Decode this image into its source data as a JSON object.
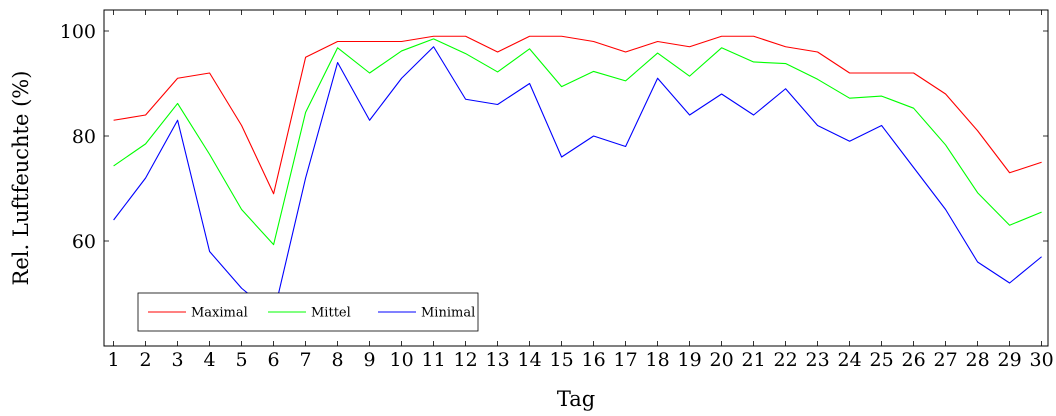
{
  "chart_data": {
    "type": "line",
    "title": "",
    "xlabel": "Tag",
    "ylabel": "Rel. Luftfeuchte (%)",
    "x": [
      1,
      2,
      3,
      4,
      5,
      6,
      7,
      8,
      9,
      10,
      11,
      12,
      13,
      14,
      15,
      16,
      17,
      18,
      19,
      20,
      21,
      22,
      23,
      24,
      25,
      26,
      27,
      28,
      29,
      30
    ],
    "xlim": [
      0.7,
      30.2
    ],
    "ylim": [
      40,
      104
    ],
    "yticks": [
      60,
      80,
      100
    ],
    "grid": false,
    "legend_position": "bottom-left",
    "series": [
      {
        "name": "Maximal",
        "color": "#ff0000",
        "values": [
          83,
          84,
          91,
          92,
          82,
          69,
          95,
          98,
          98,
          98,
          99,
          99,
          96,
          99,
          99,
          98,
          96,
          98,
          97,
          99,
          99,
          97,
          96,
          92,
          92,
          92,
          88,
          81,
          73,
          75
        ]
      },
      {
        "name": "Mittel",
        "color": "#00ff00",
        "values": [
          74.3,
          78.5,
          86.2,
          76.5,
          66,
          59.3,
          84.5,
          96.8,
          92,
          96.2,
          98.5,
          95.7,
          92.2,
          96.6,
          89.4,
          92.3,
          90.5,
          95.8,
          91.4,
          96.8,
          94.1,
          93.8,
          90.8,
          87.2,
          87.6,
          85.3,
          78.3,
          69.2,
          63,
          65.5
        ]
      },
      {
        "name": "Minimal",
        "color": "#0000ff",
        "values": [
          64,
          72,
          83,
          58,
          51,
          46,
          72,
          94,
          83,
          91,
          97,
          87,
          86,
          90,
          76,
          80,
          78,
          91,
          84,
          88,
          84,
          89,
          82,
          79,
          82,
          74,
          66,
          56,
          52,
          57
        ]
      }
    ]
  }
}
